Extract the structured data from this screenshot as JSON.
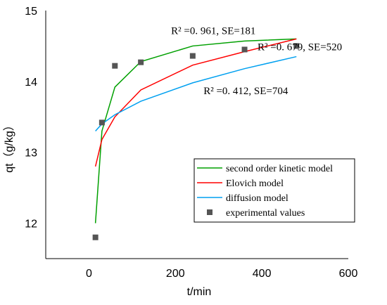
{
  "chart_data": {
    "type": "line",
    "xlabel": "t/min",
    "ylabel": "qt（g/kg）",
    "xlim": [
      -100,
      600
    ],
    "ylim": [
      11.5,
      15
    ],
    "xticks": [
      "0",
      "200",
      "400",
      "600"
    ],
    "yticks": [
      "12",
      "13",
      "14",
      "15"
    ],
    "series": [
      {
        "name": "second order kinetic model",
        "color": "#00a000",
        "kind": "line",
        "x": [
          15,
          30,
          60,
          120,
          240,
          360,
          480
        ],
        "y": [
          12.0,
          13.3,
          13.92,
          14.28,
          14.5,
          14.57,
          14.6
        ]
      },
      {
        "name": "Elovich model",
        "color": "#ff0000",
        "kind": "line",
        "x": [
          15,
          30,
          60,
          120,
          240,
          360,
          480
        ],
        "y": [
          12.8,
          13.18,
          13.5,
          13.88,
          14.23,
          14.42,
          14.6
        ]
      },
      {
        "name": "diffusion model",
        "color": "#00a0f0",
        "kind": "line",
        "x": [
          15,
          30,
          60,
          120,
          240,
          360,
          480
        ],
        "y": [
          13.3,
          13.4,
          13.53,
          13.72,
          13.98,
          14.18,
          14.35
        ]
      },
      {
        "name": "experimental values",
        "color": "#555555",
        "kind": "marker",
        "x": [
          15,
          30,
          60,
          120,
          240,
          360,
          480
        ],
        "y": [
          11.8,
          13.42,
          14.22,
          14.27,
          14.36,
          14.45,
          14.5
        ]
      }
    ],
    "annotations": [
      {
        "text": "R² =0. 961, SE=181",
        "x": 190,
        "y": 14.67
      },
      {
        "text": "R² =0. 679, SE=520",
        "x": 390,
        "y": 14.44
      },
      {
        "text": "R² =0. 412, SE=704",
        "x": 265,
        "y": 13.82
      }
    ],
    "legend_position": "lower-right",
    "grid": false
  }
}
